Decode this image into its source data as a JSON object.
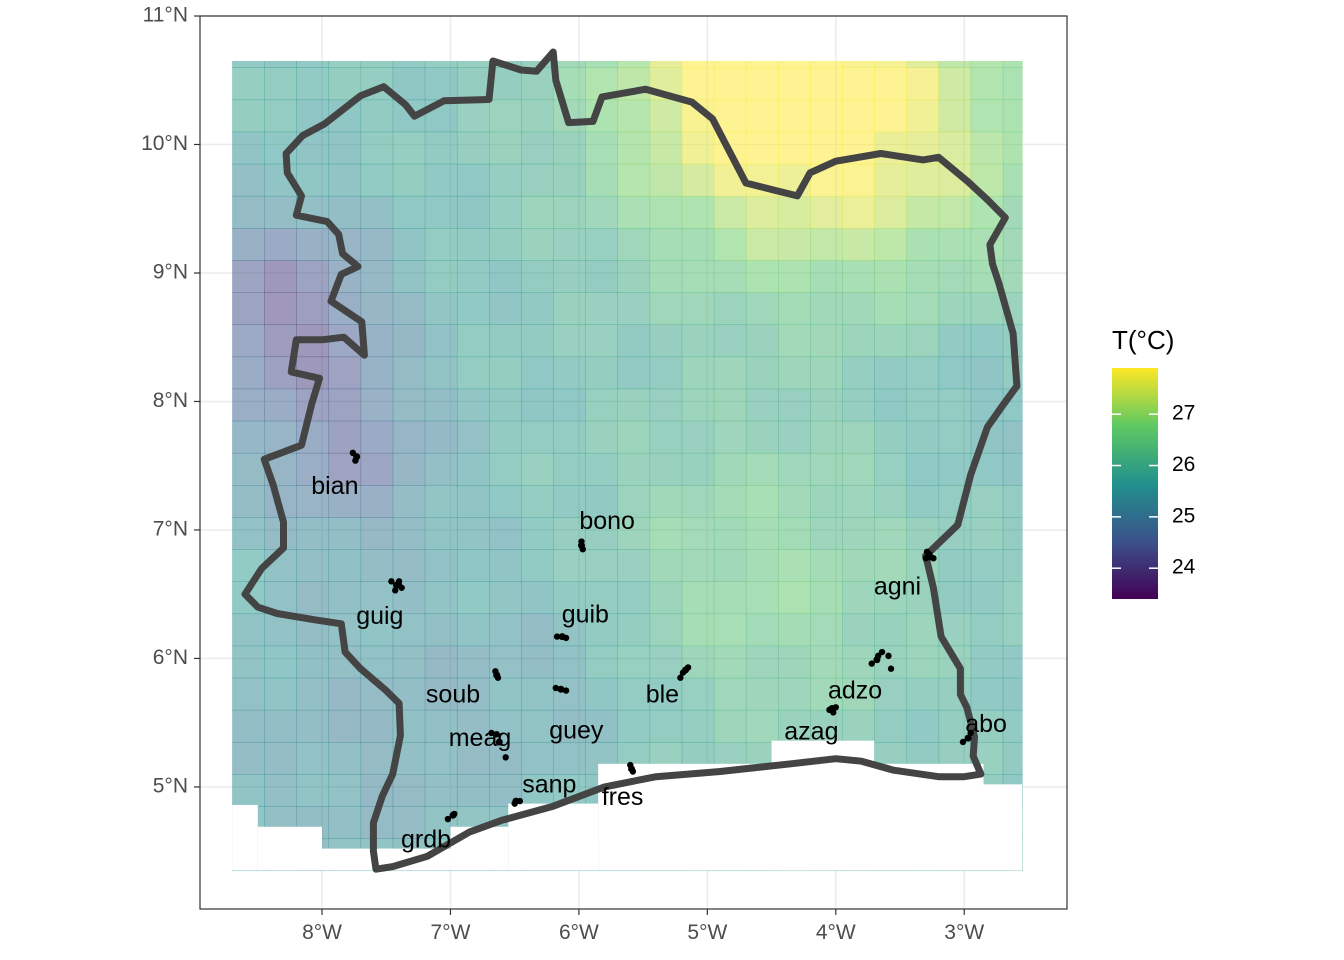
{
  "chart_data": {
    "type": "heatmap",
    "title": "",
    "xlabel": "",
    "ylabel": "",
    "x_ticks": [
      "8°W",
      "7°W",
      "6°W",
      "5°W",
      "4°W",
      "3°W"
    ],
    "x_tick_values": [
      -8,
      -7,
      -6,
      -5,
      -4,
      -3
    ],
    "y_ticks": [
      "5°N",
      "6°N",
      "7°N",
      "8°N",
      "9°N",
      "10°N",
      "11°N"
    ],
    "y_tick_values": [
      5,
      6,
      7,
      8,
      9,
      10,
      11
    ],
    "xlim": [
      -8.95,
      -2.2
    ],
    "ylim": [
      4.05,
      11.0
    ],
    "raster_extent": {
      "lon": [
        -8.7,
        -2.55
      ],
      "lat": [
        4.35,
        10.65
      ]
    },
    "legend": {
      "title": "T(°C)",
      "range": [
        23.4,
        27.9
      ],
      "ticks": [
        "24",
        "25",
        "26",
        "27"
      ],
      "tick_values": [
        24,
        25,
        26,
        27
      ],
      "colors": [
        "#440154",
        "#3b528b",
        "#21918c",
        "#5ec962",
        "#fde725"
      ],
      "position": "right"
    },
    "temperature_zones": [
      {
        "lon": -8.3,
        "lat": 8.7,
        "sigma": 0.55,
        "delta": -1.6
      },
      {
        "lon": -7.8,
        "lat": 7.6,
        "sigma": 0.5,
        "delta": -1.1
      },
      {
        "lon": -7.6,
        "lat": 5.4,
        "sigma": 1.0,
        "delta": -0.5
      },
      {
        "lon": -6.0,
        "lat": 5.9,
        "sigma": 0.6,
        "delta": -0.3
      },
      {
        "lon": -4.6,
        "lat": 10.5,
        "sigma": 0.9,
        "delta": 2.0
      },
      {
        "lon": -3.8,
        "lat": 10.2,
        "sigma": 1.0,
        "delta": 0.9
      },
      {
        "lon": -4.6,
        "lat": 6.6,
        "sigma": 0.9,
        "delta": 0.8
      },
      {
        "lon": -3.0,
        "lat": 9.8,
        "sigma": 0.8,
        "delta": 0.5
      },
      {
        "lon": -3.0,
        "lat": 8.0,
        "sigma": 0.5,
        "delta": -0.3
      }
    ],
    "sites": [
      {
        "label": "bian",
        "lon": -7.73,
        "lat": 7.57,
        "label_lon": -7.9,
        "label_lat": 7.33
      },
      {
        "label": "bono",
        "lon": -5.98,
        "lat": 6.88,
        "label_lon": -5.78,
        "label_lat": 7.06
      },
      {
        "label": "guig",
        "lon": -7.42,
        "lat": 6.57,
        "label_lon": -7.55,
        "label_lat": 6.32
      },
      {
        "label": "agni",
        "lon": -3.27,
        "lat": 6.79,
        "label_lon": -3.52,
        "label_lat": 6.55
      },
      {
        "label": "guib",
        "lon": -6.13,
        "lat": 6.17,
        "label_lon": -5.95,
        "label_lat": 6.33
      },
      {
        "label": "soub",
        "lon": -6.64,
        "lat": 5.87,
        "label_lon": -6.98,
        "label_lat": 5.71
      },
      {
        "label": "ble",
        "lon": -5.17,
        "lat": 5.91,
        "label_lon": -5.35,
        "label_lat": 5.71
      },
      {
        "label": "adzo",
        "lon": -3.68,
        "lat": 5.99,
        "label_lon": -3.85,
        "label_lat": 5.74
      },
      {
        "label": "guey",
        "lon": -6.14,
        "lat": 5.76,
        "label_lon": -6.02,
        "label_lat": 5.43
      },
      {
        "label": "abo",
        "lon": -2.97,
        "lat": 5.38,
        "label_lon": -2.83,
        "label_lat": 5.48
      },
      {
        "label": "meag",
        "lon": -6.62,
        "lat": 5.35,
        "label_lon": -6.77,
        "label_lat": 5.37
      },
      {
        "label": "azag",
        "lon": -4.03,
        "lat": 5.61,
        "label_lon": -4.19,
        "label_lat": 5.42
      },
      {
        "label": "sanp",
        "lon": -6.49,
        "lat": 4.89,
        "label_lon": -6.23,
        "label_lat": 5.01
      },
      {
        "label": "fres",
        "lon": -5.59,
        "lat": 5.14,
        "label_lon": -5.66,
        "label_lat": 4.91
      },
      {
        "label": "grdb",
        "lon": -6.98,
        "lat": 4.78,
        "label_lon": -7.19,
        "label_lat": 4.58
      }
    ],
    "extra_points": [
      [
        -7.76,
        7.6
      ],
      [
        -7.74,
        7.54
      ],
      [
        -5.98,
        6.91
      ],
      [
        -5.97,
        6.85
      ],
      [
        -7.46,
        6.6
      ],
      [
        -7.4,
        6.6
      ],
      [
        -7.38,
        6.55
      ],
      [
        -7.43,
        6.53
      ],
      [
        -7.4,
        6.57
      ],
      [
        -3.29,
        6.83
      ],
      [
        -3.24,
        6.78
      ],
      [
        -3.3,
        6.78
      ],
      [
        -3.27,
        6.81
      ],
      [
        -6.17,
        6.17
      ],
      [
        -6.1,
        6.16
      ],
      [
        -6.65,
        5.9
      ],
      [
        -6.63,
        5.85
      ],
      [
        -5.21,
        5.85
      ],
      [
        -5.15,
        5.93
      ],
      [
        -5.19,
        5.89
      ],
      [
        -3.64,
        6.05
      ],
      [
        -3.72,
        5.96
      ],
      [
        -3.57,
        5.92
      ],
      [
        -3.59,
        6.02
      ],
      [
        -3.67,
        6.02
      ],
      [
        -6.18,
        5.77
      ],
      [
        -6.1,
        5.75
      ],
      [
        -2.95,
        5.42
      ],
      [
        -3.01,
        5.35
      ],
      [
        -6.68,
        5.42
      ],
      [
        -6.57,
        5.23
      ],
      [
        -6.64,
        5.41
      ],
      [
        -6.5,
        4.87
      ],
      [
        -6.46,
        4.89
      ],
      [
        -5.58,
        5.12
      ],
      [
        -5.6,
        5.17
      ],
      [
        -7.02,
        4.75
      ],
      [
        -6.97,
        4.79
      ],
      [
        -4.05,
        5.6
      ],
      [
        -4.0,
        5.62
      ],
      [
        -4.02,
        5.58
      ]
    ],
    "nodata_areas": [
      {
        "lon": [
          -5.85,
          -2.85
        ],
        "lat": [
          4.35,
          5.18
        ]
      },
      {
        "lon": [
          -4.5,
          -3.7
        ],
        "lat": [
          4.35,
          5.36
        ]
      },
      {
        "lon": [
          -6.55,
          -5.85
        ],
        "lat": [
          4.35,
          4.87
        ]
      },
      {
        "lon": [
          -7.0,
          -6.55
        ],
        "lat": [
          4.35,
          4.69
        ]
      },
      {
        "lon": [
          -7.55,
          -7.0
        ],
        "lat": [
          4.35,
          4.52
        ]
      },
      {
        "lon": [
          -8.7,
          -8.5
        ],
        "lat": [
          4.35,
          4.86
        ]
      },
      {
        "lon": [
          -8.5,
          -8.0
        ],
        "lat": [
          4.35,
          4.69
        ]
      },
      {
        "lon": [
          -8.0,
          -7.45
        ],
        "lat": [
          4.35,
          4.52
        ]
      },
      {
        "lon": [
          -2.85,
          -2.55
        ],
        "lat": [
          4.35,
          5.02
        ]
      }
    ],
    "border": [
      [
        -7.58,
        4.36
      ],
      [
        -7.45,
        4.38
      ],
      [
        -7.18,
        4.46
      ],
      [
        -6.85,
        4.65
      ],
      [
        -6.6,
        4.74
      ],
      [
        -6.2,
        4.85
      ],
      [
        -5.8,
        5.0
      ],
      [
        -5.4,
        5.08
      ],
      [
        -4.9,
        5.12
      ],
      [
        -4.35,
        5.18
      ],
      [
        -4.0,
        5.22
      ],
      [
        -3.8,
        5.2
      ],
      [
        -3.55,
        5.13
      ],
      [
        -3.2,
        5.08
      ],
      [
        -3.0,
        5.08
      ],
      [
        -2.87,
        5.1
      ],
      [
        -2.93,
        5.24
      ],
      [
        -2.92,
        5.39
      ],
      [
        -2.98,
        5.62
      ],
      [
        -3.03,
        5.72
      ],
      [
        -3.03,
        5.92
      ],
      [
        -3.18,
        6.17
      ],
      [
        -3.24,
        6.55
      ],
      [
        -3.3,
        6.8
      ],
      [
        -3.05,
        7.04
      ],
      [
        -2.95,
        7.43
      ],
      [
        -2.82,
        7.8
      ],
      [
        -2.7,
        7.97
      ],
      [
        -2.59,
        8.12
      ],
      [
        -2.62,
        8.53
      ],
      [
        -2.73,
        8.92
      ],
      [
        -2.78,
        9.07
      ],
      [
        -2.8,
        9.22
      ],
      [
        -2.68,
        9.43
      ],
      [
        -2.82,
        9.57
      ],
      [
        -2.97,
        9.71
      ],
      [
        -3.2,
        9.9
      ],
      [
        -3.32,
        9.88
      ],
      [
        -3.65,
        9.93
      ],
      [
        -4.0,
        9.87
      ],
      [
        -4.2,
        9.78
      ],
      [
        -4.3,
        9.6
      ],
      [
        -4.5,
        9.65
      ],
      [
        -4.7,
        9.7
      ],
      [
        -4.96,
        10.2
      ],
      [
        -5.12,
        10.33
      ],
      [
        -5.48,
        10.43
      ],
      [
        -5.82,
        10.37
      ],
      [
        -5.89,
        10.18
      ],
      [
        -6.08,
        10.17
      ],
      [
        -6.18,
        10.5
      ],
      [
        -6.2,
        10.72
      ],
      [
        -6.33,
        10.57
      ],
      [
        -6.45,
        10.58
      ],
      [
        -6.67,
        10.65
      ],
      [
        -6.7,
        10.35
      ],
      [
        -7.05,
        10.34
      ],
      [
        -7.28,
        10.22
      ],
      [
        -7.35,
        10.31
      ],
      [
        -7.52,
        10.45
      ],
      [
        -7.7,
        10.38
      ],
      [
        -7.98,
        10.16
      ],
      [
        -8.15,
        10.07
      ],
      [
        -8.28,
        9.93
      ],
      [
        -8.27,
        9.78
      ],
      [
        -8.16,
        9.6
      ],
      [
        -8.2,
        9.45
      ],
      [
        -7.96,
        9.4
      ],
      [
        -7.87,
        9.3
      ],
      [
        -7.84,
        9.15
      ],
      [
        -7.72,
        9.05
      ],
      [
        -7.85,
        8.99
      ],
      [
        -7.93,
        8.78
      ],
      [
        -7.69,
        8.62
      ],
      [
        -7.67,
        8.36
      ],
      [
        -7.83,
        8.5
      ],
      [
        -8.0,
        8.48
      ],
      [
        -8.2,
        8.48
      ],
      [
        -8.24,
        8.23
      ],
      [
        -8.02,
        8.18
      ],
      [
        -8.08,
        7.98
      ],
      [
        -8.16,
        7.66
      ],
      [
        -8.45,
        7.55
      ],
      [
        -8.38,
        7.35
      ],
      [
        -8.3,
        7.06
      ],
      [
        -8.3,
        6.86
      ],
      [
        -8.47,
        6.7
      ],
      [
        -8.6,
        6.5
      ],
      [
        -8.5,
        6.4
      ],
      [
        -8.35,
        6.35
      ],
      [
        -8.05,
        6.3
      ],
      [
        -7.85,
        6.27
      ],
      [
        -7.82,
        6.05
      ],
      [
        -7.7,
        5.92
      ],
      [
        -7.5,
        5.75
      ],
      [
        -7.4,
        5.65
      ],
      [
        -7.39,
        5.4
      ],
      [
        -7.45,
        5.1
      ],
      [
        -7.53,
        4.93
      ],
      [
        -7.6,
        4.72
      ],
      [
        -7.6,
        4.5
      ],
      [
        -7.58,
        4.36
      ]
    ]
  }
}
